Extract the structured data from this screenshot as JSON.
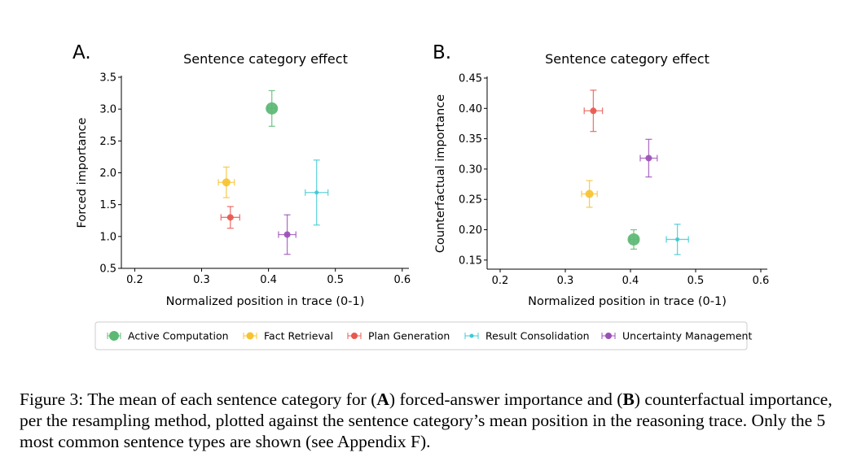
{
  "figure": {
    "legend": [
      {
        "label": "Active Computation",
        "color": "#5cb974"
      },
      {
        "label": "Fact Retrieval",
        "color": "#f6c331"
      },
      {
        "label": "Plan Generation",
        "color": "#e8584e"
      },
      {
        "label": "Result Consolidation",
        "color": "#3ec9d3"
      },
      {
        "label": "Uncertainty Management",
        "color": "#9b4fb7"
      }
    ]
  },
  "chart_data": [
    {
      "type": "scatter",
      "panel_label": "A.",
      "title": "Sentence category effect",
      "xlabel": "Normalized position in trace (0-1)",
      "ylabel": "Forced importance",
      "xlim": [
        0.18,
        0.61
      ],
      "ylim": [
        0.5,
        3.5
      ],
      "xticks": [
        0.2,
        0.3,
        0.4,
        0.5,
        0.6
      ],
      "xtick_labels": [
        "0.2",
        "0.3",
        "0.4",
        "0.5",
        "0.6"
      ],
      "yticks": [
        0.5,
        1.0,
        1.5,
        2.0,
        2.5,
        3.0,
        3.5
      ],
      "ytick_labels": [
        "0.5",
        "1.0",
        "1.5",
        "2.0",
        "2.5",
        "3.0",
        "3.5"
      ],
      "series": [
        {
          "name": "Active Computation",
          "color": "#5cb974",
          "x": 0.405,
          "y": 3.01,
          "xerr": 0.006,
          "yerr": 0.28,
          "marker_size": 7.5
        },
        {
          "name": "Fact Retrieval",
          "color": "#f6c331",
          "x": 0.337,
          "y": 1.85,
          "xerr": 0.012,
          "yerr": 0.24,
          "marker_size": 5
        },
        {
          "name": "Plan Generation",
          "color": "#e8584e",
          "x": 0.343,
          "y": 1.3,
          "xerr": 0.014,
          "yerr": 0.17,
          "marker_size": 4
        },
        {
          "name": "Result Consolidation",
          "color": "#3ec9d3",
          "x": 0.472,
          "y": 1.69,
          "xerr": 0.017,
          "yerr": 0.51,
          "marker_size": 2.5
        },
        {
          "name": "Uncertainty Management",
          "color": "#9b4fb7",
          "x": 0.428,
          "y": 1.03,
          "xerr": 0.013,
          "yerr": 0.31,
          "marker_size": 4
        }
      ]
    },
    {
      "type": "scatter",
      "panel_label": "B.",
      "title": "Sentence category effect",
      "xlabel": "Normalized position in trace (0-1)",
      "ylabel": "Counterfactual importance",
      "xlim": [
        0.18,
        0.61
      ],
      "ylim": [
        0.135,
        0.45
      ],
      "xticks": [
        0.2,
        0.3,
        0.4,
        0.5,
        0.6
      ],
      "xtick_labels": [
        "0.2",
        "0.3",
        "0.4",
        "0.5",
        "0.6"
      ],
      "yticks": [
        0.15,
        0.2,
        0.25,
        0.3,
        0.35,
        0.4,
        0.45
      ],
      "ytick_labels": [
        "0.15",
        "0.20",
        "0.25",
        "0.30",
        "0.35",
        "0.40",
        "0.45"
      ],
      "series": [
        {
          "name": "Active Computation",
          "color": "#5cb974",
          "x": 0.405,
          "y": 0.184,
          "xerr": 0.006,
          "yerr": 0.016,
          "marker_size": 7.5
        },
        {
          "name": "Fact Retrieval",
          "color": "#f6c331",
          "x": 0.337,
          "y": 0.259,
          "xerr": 0.012,
          "yerr": 0.022,
          "marker_size": 5
        },
        {
          "name": "Plan Generation",
          "color": "#e8584e",
          "x": 0.343,
          "y": 0.396,
          "xerr": 0.014,
          "yerr": 0.034,
          "marker_size": 4
        },
        {
          "name": "Result Consolidation",
          "color": "#3ec9d3",
          "x": 0.472,
          "y": 0.184,
          "xerr": 0.017,
          "yerr": 0.025,
          "marker_size": 2.5
        },
        {
          "name": "Uncertainty Management",
          "color": "#9b4fb7",
          "x": 0.428,
          "y": 0.318,
          "xerr": 0.013,
          "yerr": 0.031,
          "marker_size": 4
        }
      ]
    }
  ],
  "caption": {
    "prefix": "Figure 3: The mean of each sentence category for (",
    "bold_a": "A",
    "mid1": ") forced-answer importance and (",
    "bold_b": "B",
    "rest": ") counterfactual importance, per the resampling method, plotted against the sentence category’s mean position in the reasoning trace. Only the 5 most common sentence types are shown (see Appendix F)."
  }
}
